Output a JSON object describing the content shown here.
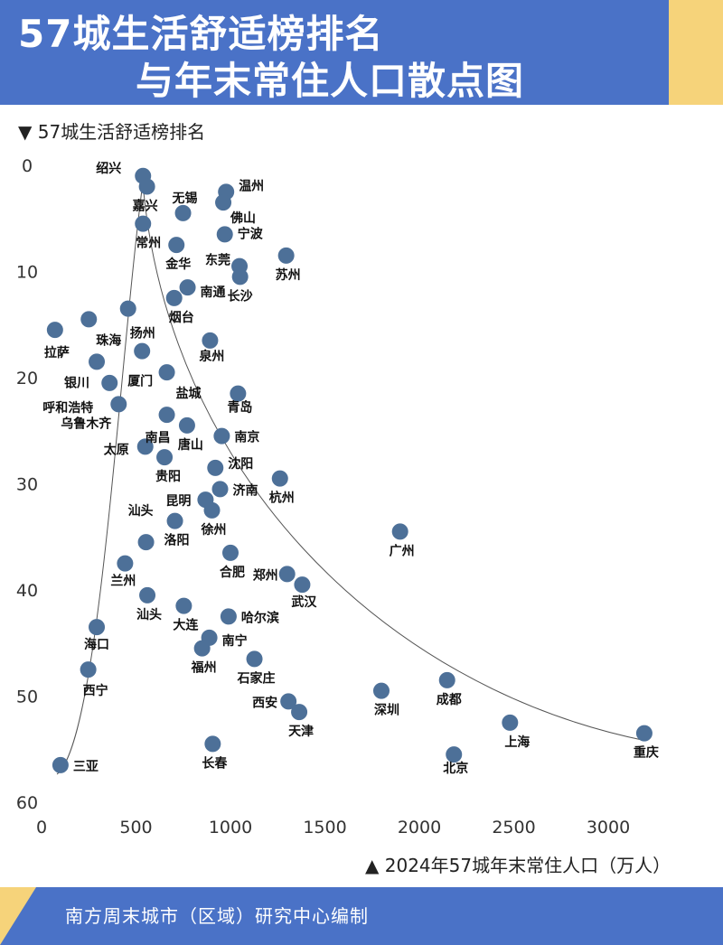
{
  "header": {
    "title_line1": "57城生活舒适榜排名",
    "title_line2": "与年末常住人口散点图"
  },
  "footer": {
    "text": "南方周末城市（区域）研究中心编制"
  },
  "colors": {
    "header_bg": "#4a72c7",
    "accent": "#f6d37a",
    "point": "#4d7098"
  },
  "chart_data": {
    "type": "scatter",
    "ylabel": "▼ 57城生活舒适榜排名",
    "xlabel": "▲ 2024年57城年末常住人口（万人）",
    "xlim": [
      0,
      3400
    ],
    "ylim": [
      0,
      60
    ],
    "y_inverted": true,
    "xticks": [
      0,
      500,
      1000,
      1500,
      2000,
      2500,
      3000
    ],
    "yticks": [
      0,
      10,
      20,
      30,
      40,
      50,
      60
    ],
    "grid": false,
    "trend_curve": "envelope",
    "points": [
      {
        "name": "绍兴",
        "x": 537,
        "y": 1
      },
      {
        "name": "嘉兴",
        "x": 558,
        "y": 2
      },
      {
        "name": "温州",
        "x": 977,
        "y": 2.5
      },
      {
        "name": "佛山",
        "x": 962,
        "y": 3.5
      },
      {
        "name": "无锡",
        "x": 749,
        "y": 4.5
      },
      {
        "name": "常州",
        "x": 537,
        "y": 5.5
      },
      {
        "name": "宁波",
        "x": 970,
        "y": 6.5
      },
      {
        "name": "金华",
        "x": 714,
        "y": 7.5
      },
      {
        "name": "苏州",
        "x": 1295,
        "y": 8.5
      },
      {
        "name": "东莞",
        "x": 1048,
        "y": 9.5
      },
      {
        "name": "长沙",
        "x": 1051,
        "y": 10.5
      },
      {
        "name": "南通",
        "x": 773,
        "y": 11.5
      },
      {
        "name": "烟台",
        "x": 702,
        "y": 12.5
      },
      {
        "name": "扬州",
        "x": 458,
        "y": 13.5
      },
      {
        "name": "珠海",
        "x": 250,
        "y": 14.5
      },
      {
        "name": "拉萨",
        "x": 71,
        "y": 15.5
      },
      {
        "name": "泉州",
        "x": 892,
        "y": 16.5
      },
      {
        "name": "厦门",
        "x": 532,
        "y": 17.5
      },
      {
        "name": "银川",
        "x": 292,
        "y": 18.5
      },
      {
        "name": "盐城",
        "x": 663,
        "y": 19.5
      },
      {
        "name": "呼和浩特",
        "x": 360,
        "y": 20.5
      },
      {
        "name": "青岛",
        "x": 1040,
        "y": 21.5
      },
      {
        "name": "乌鲁木齐",
        "x": 408,
        "y": 22.5
      },
      {
        "name": "南昌",
        "x": 663,
        "y": 23.5
      },
      {
        "name": "唐山",
        "x": 770,
        "y": 24.5
      },
      {
        "name": "南京",
        "x": 954,
        "y": 25.5
      },
      {
        "name": "太原",
        "x": 549,
        "y": 26.5
      },
      {
        "name": "贵阳",
        "x": 651,
        "y": 27.5
      },
      {
        "name": "沈阳",
        "x": 920,
        "y": 28.5
      },
      {
        "name": "杭州",
        "x": 1262,
        "y": 29.5
      },
      {
        "name": "济南",
        "x": 945,
        "y": 30.5
      },
      {
        "name": "昆明",
        "x": 868,
        "y": 31.5
      },
      {
        "name": "徐州",
        "x": 902,
        "y": 32.5
      },
      {
        "name": "洛阳",
        "x": 706,
        "y": 33.5
      },
      {
        "name": "广州",
        "x": 1898,
        "y": 34.5
      },
      {
        "name": "汕头",
        "x": 553,
        "y": 35.5
      },
      {
        "name": "合肥",
        "x": 1000,
        "y": 36.5
      },
      {
        "name": "兰州",
        "x": 442,
        "y": 37.5
      },
      {
        "name": "郑州",
        "x": 1300,
        "y": 38.5
      },
      {
        "name": "武汉",
        "x": 1380,
        "y": 39.5
      },
      {
        "name": "汕头",
        "x": 560,
        "y": 40.5
      },
      {
        "name": "大连",
        "x": 753,
        "y": 41.5
      },
      {
        "name": "哈尔滨",
        "x": 990,
        "y": 42.5
      },
      {
        "name": "海口",
        "x": 292,
        "y": 43.5
      },
      {
        "name": "南宁",
        "x": 888,
        "y": 44.5
      },
      {
        "name": "福州",
        "x": 850,
        "y": 45.5
      },
      {
        "name": "石家庄",
        "x": 1127,
        "y": 46.5
      },
      {
        "name": "西宁",
        "x": 247,
        "y": 47.5
      },
      {
        "name": "成都",
        "x": 2147,
        "y": 48.5
      },
      {
        "name": "深圳",
        "x": 1799,
        "y": 49.5
      },
      {
        "name": "西安",
        "x": 1307,
        "y": 50.5
      },
      {
        "name": "天津",
        "x": 1364,
        "y": 51.5
      },
      {
        "name": "上海",
        "x": 2480,
        "y": 52.5
      },
      {
        "name": "重庆",
        "x": 3191,
        "y": 53.5
      },
      {
        "name": "长春",
        "x": 906,
        "y": 54.5
      },
      {
        "name": "北京",
        "x": 2183,
        "y": 55.5
      },
      {
        "name": "三亚",
        "x": 100,
        "y": 56.5
      }
    ]
  }
}
